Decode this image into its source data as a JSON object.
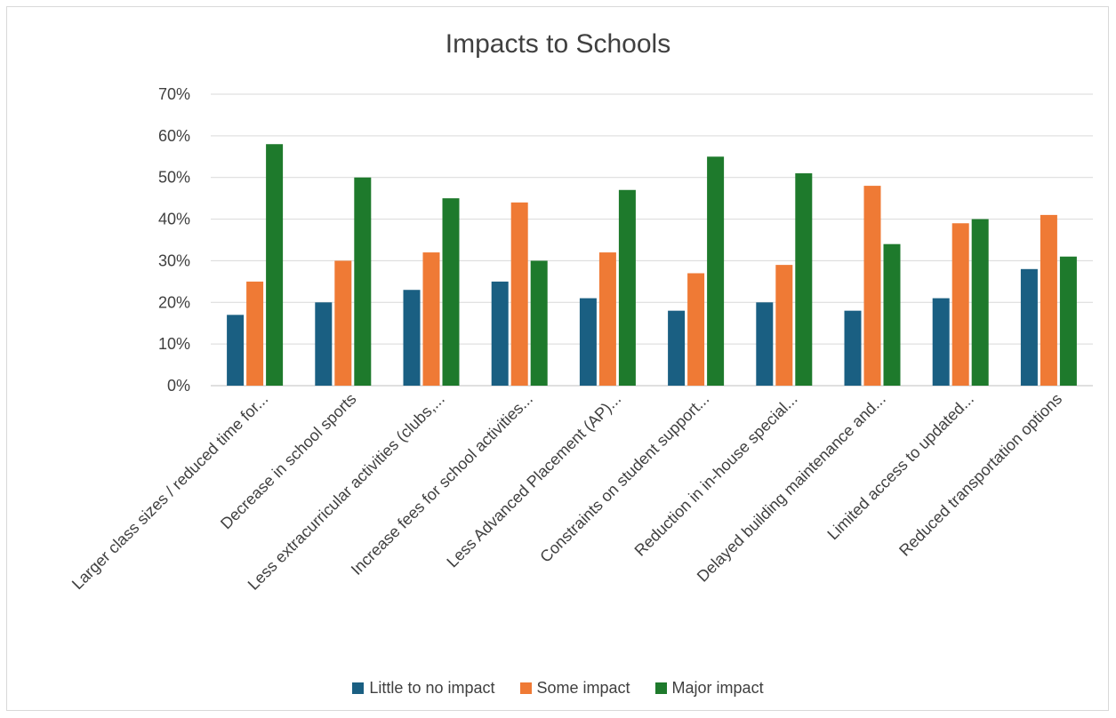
{
  "chart_data": {
    "type": "bar",
    "title": "Impacts to Schools",
    "xlabel": "",
    "ylabel": "",
    "ylim": [
      0,
      70
    ],
    "yticks": [
      "0%",
      "10%",
      "20%",
      "30%",
      "40%",
      "50%",
      "60%",
      "70%"
    ],
    "grid": true,
    "legend_position": "bottom",
    "categories": [
      "Larger class sizes / reduced time for...",
      "Decrease in school sports",
      "Less extracurricular activities (clubs,...",
      "Increase fees for school activities...",
      "Less Advanced Placement (AP)...",
      "Constraints on student support...",
      "Reduction in in-house special...",
      "Delayed building maintenance and...",
      "Limited access to updated...",
      "Reduced transportation options"
    ],
    "series": [
      {
        "name": "Little to no impact",
        "color": "#1a5f82",
        "values": [
          17,
          20,
          23,
          25,
          21,
          18,
          20,
          18,
          21,
          28
        ]
      },
      {
        "name": "Some impact",
        "color": "#ef7a35",
        "values": [
          25,
          30,
          32,
          44,
          32,
          27,
          29,
          48,
          39,
          41
        ]
      },
      {
        "name": "Major impact",
        "color": "#1e7a2c",
        "values": [
          58,
          50,
          45,
          30,
          47,
          55,
          51,
          34,
          40,
          31
        ]
      }
    ]
  }
}
